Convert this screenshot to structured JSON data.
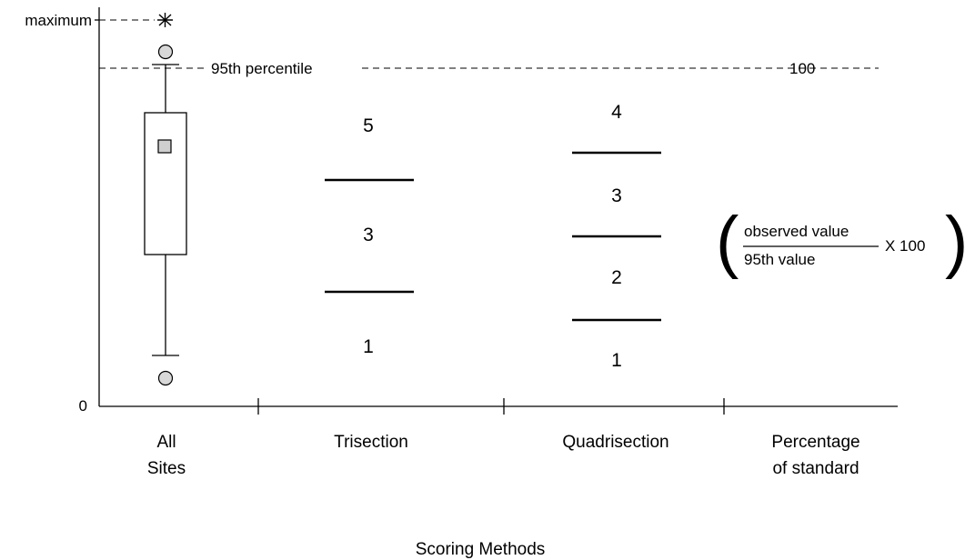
{
  "y_axis": {
    "maximum_label": "maximum",
    "zero_label": "0"
  },
  "annotations": {
    "percentile_label": "95th percentile",
    "hundred_label": "100"
  },
  "categories": {
    "all_sites": [
      "All",
      "Sites"
    ],
    "trisection": "Trisection",
    "quadrisection": "Quadrisection",
    "percentage": [
      "Percentage",
      "of standard"
    ]
  },
  "trisection_scores": [
    "5",
    "3",
    "1"
  ],
  "quadrisection_scores": [
    "4",
    "3",
    "2",
    "1"
  ],
  "formula": {
    "numerator": "observed value",
    "denominator": "95th value",
    "multiplier": "X 100",
    "open_paren": "(",
    "close_paren": ")"
  },
  "x_axis_title": "Scoring Methods",
  "icons": {
    "maximum_marker": "asterisk-icon",
    "outlier_marker": "circle-icon",
    "mean_marker": "square-icon"
  }
}
